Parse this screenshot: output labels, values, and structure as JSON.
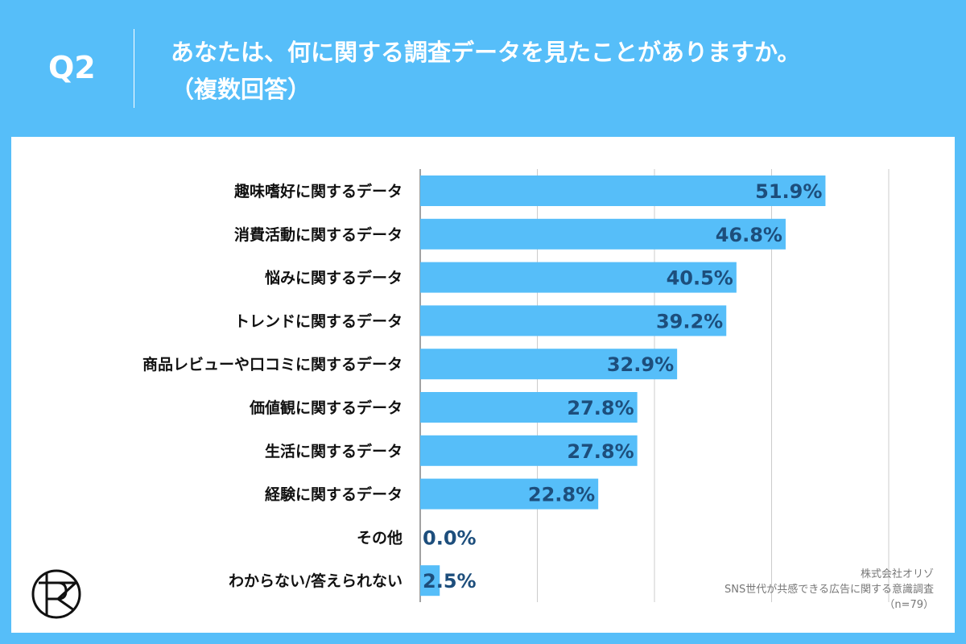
{
  "header": {
    "question": "Q2",
    "title_line1": "あなたは、何に関する調査データを見たことがありますか。",
    "title_line2": "（複数回答）"
  },
  "source": {
    "company": "株式会社オリゾ",
    "survey": "SNS世代が共感できる広告に関する意識調査",
    "sample": "（n=79）"
  },
  "logo": {
    "text": "RZ"
  },
  "colors": {
    "background": "#56bef9",
    "bar": "#56bef9",
    "value_label": "#1d4e7c"
  },
  "chart_data": {
    "type": "bar",
    "orientation": "horizontal",
    "categories": [
      "趣味嗜好に関するデータ",
      "消費活動に関するデータ",
      "悩みに関するデータ",
      "トレンドに関するデータ",
      "商品レビューや口コミに関するデータ",
      "価値観に関するデータ",
      "生活に関するデータ",
      "経験に関するデータ",
      "その他",
      "わからない/答えられない"
    ],
    "values": [
      51.9,
      46.8,
      40.5,
      39.2,
      32.9,
      27.8,
      27.8,
      22.8,
      0.0,
      2.5
    ],
    "value_labels": [
      "51.9%",
      "46.8%",
      "40.5%",
      "39.2%",
      "32.9%",
      "27.8%",
      "27.8%",
      "22.8%",
      "0.0%",
      "2.5%"
    ],
    "xlim": [
      0,
      60
    ],
    "gridlines": [
      0,
      15,
      30,
      45,
      60
    ],
    "grid": true
  }
}
